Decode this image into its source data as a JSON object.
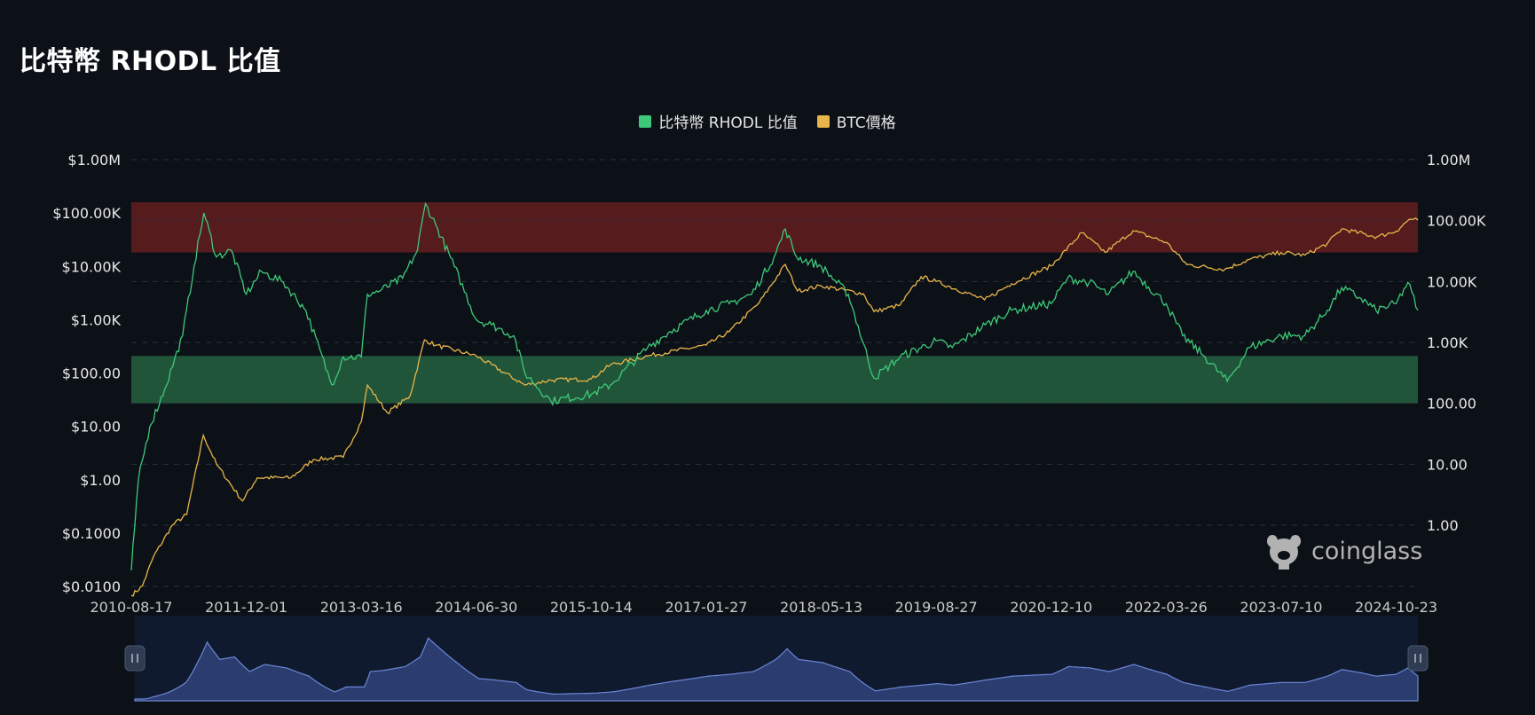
{
  "header": {
    "title": "比特幣 RHODL 比值"
  },
  "legend": [
    {
      "label": "比特幣 RHODL 比值",
      "color": "#3ec97a"
    },
    {
      "label": "BTC價格",
      "color": "#e8b54a"
    }
  ],
  "watermark": {
    "text": "coinglass",
    "icon": "coinglass-logo-icon"
  },
  "colors": {
    "background": "#0c1117",
    "rhodl": "#3ec97a",
    "price": "#e8b54a",
    "upper_band": "#5a1c1e",
    "lower_band": "#235a3c",
    "navigator_bg": "#0f1a2e",
    "navigator_line": "#6c86d8"
  },
  "chart_data": {
    "type": "line",
    "title": "比特幣 RHODL 比值",
    "log_scale": true,
    "grid": "dashed-horizontal",
    "legend_position": "top-center",
    "y_left_ticks": [
      "$1.00M",
      "$100.00K",
      "$10.00K",
      "$1.00K",
      "$100.00",
      "$10.00",
      "$1.00",
      "$0.1000",
      "$0.0100"
    ],
    "y_right_ticks": [
      "1.00M",
      "100.00K",
      "10.00K",
      "1.00K",
      "100.00",
      "10.00",
      "1.00"
    ],
    "x_ticks": [
      "2010-08-17",
      "2011-12-01",
      "2013-03-16",
      "2014-06-30",
      "2015-10-14",
      "2017-01-27",
      "2018-05-13",
      "2019-08-27",
      "2020-12-10",
      "2022-03-26",
      "2023-07-10",
      "2024-10-23"
    ],
    "x_range": [
      "2010-08-17",
      "2025-01-20"
    ],
    "left_ylim": [
      0.005,
      1000000
    ],
    "right_ylim": [
      0.05,
      1000000
    ],
    "bands": [
      {
        "name": "upper",
        "from": 30000,
        "to": 200000,
        "axis": "right",
        "color": "#5a1c1e"
      },
      {
        "name": "lower",
        "from": 100,
        "to": 600,
        "axis": "right",
        "color": "#235a3c"
      }
    ],
    "series": [
      {
        "name": "比特幣 RHODL 比值",
        "axis": "left",
        "color": "#3ec97a",
        "points": [
          [
            "2010-08-17",
            0.02
          ],
          [
            "2010-09-15",
            1.0
          ],
          [
            "2010-11-01",
            10
          ],
          [
            "2011-01-01",
            50
          ],
          [
            "2011-03-15",
            500
          ],
          [
            "2011-05-01",
            10000
          ],
          [
            "2011-06-10",
            100000
          ],
          [
            "2011-08-01",
            15000
          ],
          [
            "2011-10-01",
            20000
          ],
          [
            "2011-12-01",
            3000
          ],
          [
            "2012-02-01",
            8000
          ],
          [
            "2012-05-01",
            5000
          ],
          [
            "2012-08-01",
            1500
          ],
          [
            "2012-11-15",
            60
          ],
          [
            "2013-01-01",
            200
          ],
          [
            "2013-03-16",
            200
          ],
          [
            "2013-04-10",
            3000
          ],
          [
            "2013-06-01",
            3500
          ],
          [
            "2013-09-01",
            6000
          ],
          [
            "2013-11-01",
            20000
          ],
          [
            "2013-12-04",
            150000
          ],
          [
            "2014-01-15",
            60000
          ],
          [
            "2014-04-01",
            10000
          ],
          [
            "2014-06-30",
            1000
          ],
          [
            "2014-09-01",
            800
          ],
          [
            "2014-12-01",
            500
          ],
          [
            "2015-01-15",
            100
          ],
          [
            "2015-05-01",
            30
          ],
          [
            "2015-10-14",
            40
          ],
          [
            "2016-01-01",
            60
          ],
          [
            "2016-06-01",
            300
          ],
          [
            "2016-09-01",
            600
          ],
          [
            "2017-01-27",
            1500
          ],
          [
            "2017-05-01",
            2000
          ],
          [
            "2017-08-01",
            3000
          ],
          [
            "2017-11-01",
            15000
          ],
          [
            "2017-12-17",
            50000
          ],
          [
            "2018-02-01",
            15000
          ],
          [
            "2018-05-13",
            10000
          ],
          [
            "2018-09-01",
            3000
          ],
          [
            "2018-12-15",
            80
          ],
          [
            "2019-04-01",
            200
          ],
          [
            "2019-08-27",
            400
          ],
          [
            "2019-11-01",
            300
          ],
          [
            "2020-03-15",
            800
          ],
          [
            "2020-07-01",
            1500
          ],
          [
            "2020-12-10",
            2000
          ],
          [
            "2021-02-15",
            6000
          ],
          [
            "2021-05-15",
            5000
          ],
          [
            "2021-08-01",
            3000
          ],
          [
            "2021-11-10",
            8000
          ],
          [
            "2022-03-26",
            2000
          ],
          [
            "2022-06-01",
            500
          ],
          [
            "2022-09-01",
            200
          ],
          [
            "2022-12-01",
            70
          ],
          [
            "2023-03-01",
            300
          ],
          [
            "2023-07-10",
            500
          ],
          [
            "2023-10-15",
            500
          ],
          [
            "2024-01-15",
            1500
          ],
          [
            "2024-03-14",
            4000
          ],
          [
            "2024-06-01",
            2500
          ],
          [
            "2024-08-01",
            1500
          ],
          [
            "2024-10-23",
            2000
          ],
          [
            "2024-12-10",
            5000
          ],
          [
            "2025-01-20",
            1500
          ]
        ]
      },
      {
        "name": "BTC價格",
        "axis": "right",
        "color": "#e8b54a",
        "points": [
          [
            "2010-08-17",
            0.07
          ],
          [
            "2010-10-01",
            0.1
          ],
          [
            "2010-11-15",
            0.3
          ],
          [
            "2011-02-01",
            1.0
          ],
          [
            "2011-04-01",
            1.5
          ],
          [
            "2011-06-08",
            30
          ],
          [
            "2011-08-01",
            10
          ],
          [
            "2011-11-15",
            2.5
          ],
          [
            "2012-01-15",
            6
          ],
          [
            "2012-06-01",
            6
          ],
          [
            "2012-09-01",
            12
          ],
          [
            "2013-01-01",
            13
          ],
          [
            "2013-03-16",
            50
          ],
          [
            "2013-04-10",
            200
          ],
          [
            "2013-07-01",
            70
          ],
          [
            "2013-10-01",
            130
          ],
          [
            "2013-11-30",
            1100
          ],
          [
            "2014-01-15",
            900
          ],
          [
            "2014-06-30",
            600
          ],
          [
            "2015-01-15",
            200
          ],
          [
            "2015-05-01",
            240
          ],
          [
            "2015-10-14",
            250
          ],
          [
            "2016-01-01",
            430
          ],
          [
            "2016-06-01",
            600
          ],
          [
            "2017-01-27",
            900
          ],
          [
            "2017-05-01",
            1500
          ],
          [
            "2017-09-01",
            4500
          ],
          [
            "2017-12-17",
            19000
          ],
          [
            "2018-02-05",
            7000
          ],
          [
            "2018-05-13",
            8500
          ],
          [
            "2018-11-01",
            6300
          ],
          [
            "2018-12-15",
            3200
          ],
          [
            "2019-04-01",
            4100
          ],
          [
            "2019-06-26",
            12000
          ],
          [
            "2019-08-27",
            10000
          ],
          [
            "2020-03-12",
            5000
          ],
          [
            "2020-07-01",
            9200
          ],
          [
            "2020-12-10",
            18000
          ],
          [
            "2021-04-14",
            63000
          ],
          [
            "2021-07-20",
            30000
          ],
          [
            "2021-11-10",
            68000
          ],
          [
            "2022-03-26",
            44000
          ],
          [
            "2022-06-18",
            19000
          ],
          [
            "2022-11-21",
            15800
          ],
          [
            "2023-03-01",
            23000
          ],
          [
            "2023-07-10",
            30000
          ],
          [
            "2023-10-15",
            27000
          ],
          [
            "2024-01-15",
            42000
          ],
          [
            "2024-03-14",
            73000
          ],
          [
            "2024-08-05",
            54000
          ],
          [
            "2024-10-23",
            67000
          ],
          [
            "2024-12-17",
            106000
          ],
          [
            "2025-01-20",
            102000
          ]
        ]
      }
    ],
    "navigator": {
      "series": "比特幣 RHODL 比值",
      "range": [
        "2010-08-17",
        "2025-01-20"
      ]
    }
  }
}
